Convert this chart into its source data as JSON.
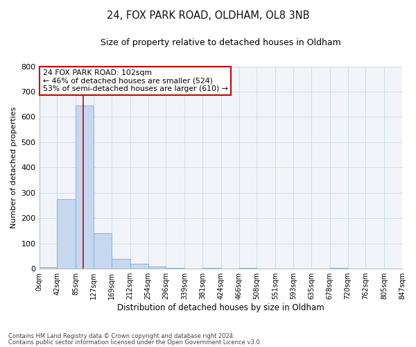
{
  "title": "24, FOX PARK ROAD, OLDHAM, OL8 3NB",
  "subtitle": "Size of property relative to detached houses in Oldham",
  "xlabel": "Distribution of detached houses by size in Oldham",
  "ylabel": "Number of detached properties",
  "bar_color": "#c5d8f0",
  "bar_edge_color": "#7aaed6",
  "bin_edges": [
    0,
    42,
    85,
    127,
    169,
    212,
    254,
    296,
    339,
    381,
    424,
    466,
    508,
    551,
    593,
    635,
    678,
    720,
    762,
    805,
    847
  ],
  "bin_labels": [
    "0sqm",
    "42sqm",
    "85sqm",
    "127sqm",
    "169sqm",
    "212sqm",
    "254sqm",
    "296sqm",
    "339sqm",
    "381sqm",
    "424sqm",
    "466sqm",
    "508sqm",
    "551sqm",
    "593sqm",
    "635sqm",
    "678sqm",
    "720sqm",
    "762sqm",
    "805sqm",
    "847sqm"
  ],
  "bar_heights": [
    5,
    275,
    645,
    140,
    38,
    20,
    10,
    4,
    0,
    4,
    0,
    4,
    0,
    0,
    0,
    0,
    4,
    0,
    0,
    0
  ],
  "ylim": [
    0,
    800
  ],
  "yticks": [
    0,
    100,
    200,
    300,
    400,
    500,
    600,
    700,
    800
  ],
  "red_line_x": 102,
  "annotation_title": "24 FOX PARK ROAD: 102sqm",
  "annotation_line1": "← 46% of detached houses are smaller (524)",
  "annotation_line2": "53% of semi-detached houses are larger (610) →",
  "annotation_box_color": "#ffffff",
  "annotation_box_edge": "#cc0000",
  "footnote1": "Contains HM Land Registry data © Crown copyright and database right 2024.",
  "footnote2": "Contains public sector information licensed under the Open Government Licence v3.0.",
  "bg_color": "#ffffff",
  "plot_bg_color": "#f0f4f8",
  "grid_color": "#d0dce8"
}
